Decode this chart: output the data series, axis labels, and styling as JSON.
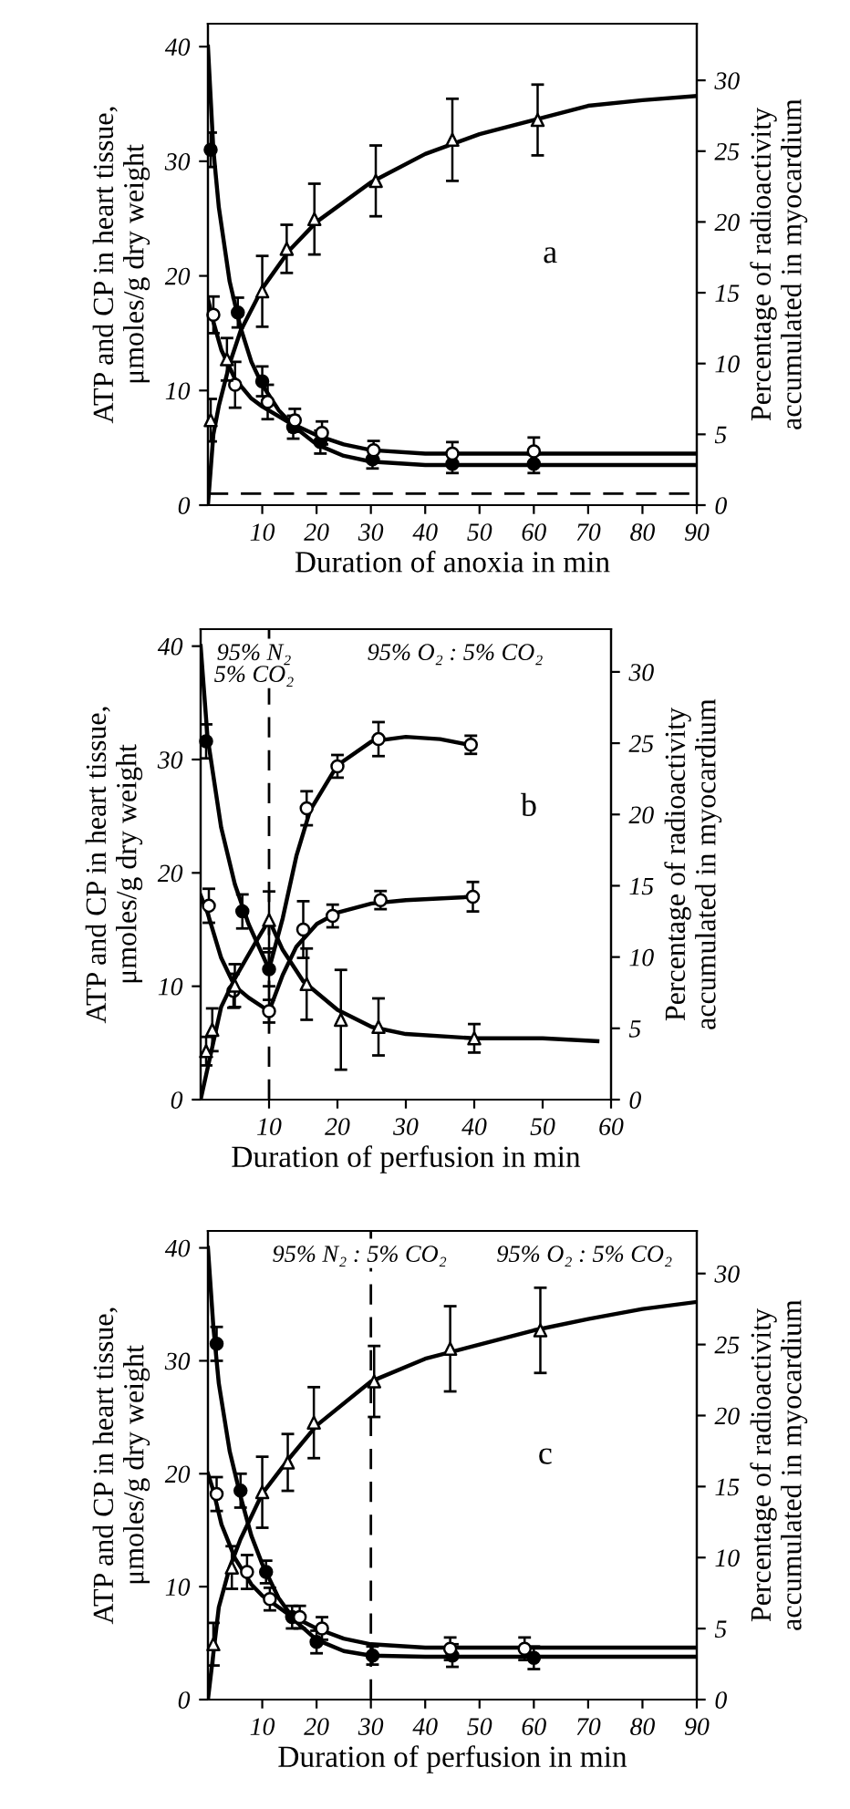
{
  "chart_data": [
    {
      "type": "line",
      "xlabel": "Duration of anoxia in min",
      "ylabel": "ATP and CP in heart tissue,\nμmoles/g dry weight",
      "y2label": "Percentage of radioactivity\naccumulated in myocardium",
      "xlim": [
        0,
        90
      ],
      "xticks": [
        10,
        20,
        30,
        40,
        50,
        60,
        70,
        80,
        90
      ],
      "ylim": [
        0,
        42
      ],
      "yticks": [
        0,
        10,
        20,
        30,
        40
      ],
      "y2lim": [
        0,
        34
      ],
      "y2ticks": [
        0,
        5,
        10,
        15,
        20,
        25,
        30
      ],
      "grid": false,
      "legend": false,
      "annotations": [
        "a"
      ],
      "ref_lines": [
        {
          "axis": "y",
          "value": 1,
          "line_style": "dashed",
          "color": "#000000"
        }
      ],
      "series": [
        {
          "type": "line",
          "color": "#000000",
          "x": [
            0,
            1,
            2,
            4,
            6,
            8,
            10,
            13,
            16,
            20,
            25,
            30,
            40,
            90
          ],
          "values": [
            40,
            31,
            26,
            19.5,
            15.5,
            12.5,
            10.5,
            8.3,
            6.8,
            5.3,
            4.3,
            3.8,
            3.5,
            3.5
          ]
        },
        {
          "type": "line",
          "color": "#000000",
          "x": [
            0,
            1,
            2.5,
            5,
            8,
            10,
            15,
            20,
            25,
            30,
            40,
            90
          ],
          "values": [
            18,
            16,
            13.5,
            11,
            9.3,
            8.6,
            7.2,
            6.1,
            5.3,
            4.8,
            4.5,
            4.5
          ]
        },
        {
          "type": "line",
          "axis": "y2",
          "color": "#000000",
          "x": [
            0,
            1,
            2,
            4,
            6,
            10,
            15,
            20,
            30,
            40,
            50,
            60,
            70,
            80,
            90
          ],
          "values": [
            0,
            5,
            7,
            10,
            12.3,
            15.3,
            18,
            20,
            22.8,
            24.8,
            26.2,
            27.2,
            28.2,
            28.6,
            28.9
          ]
        },
        {
          "type": "scatter",
          "marker": "circle",
          "color": "#000000",
          "x": [
            0.5,
            5.5,
            10,
            15.7,
            20.7,
            30.3,
            45,
            60
          ],
          "values": [
            31,
            16.8,
            10.8,
            6.8,
            5.5,
            4,
            3.6,
            3.6
          ],
          "errors": [
            1.5,
            1.3,
            1.3,
            1,
            1,
            0.8,
            0.8,
            0.8
          ]
        },
        {
          "type": "scatter",
          "marker": "circle",
          "color": "#ffffff",
          "x": [
            1,
            5,
            11,
            16,
            21,
            30.5,
            45,
            60
          ],
          "values": [
            16.6,
            10.5,
            9,
            7.4,
            6.3,
            4.8,
            4.5,
            4.7
          ],
          "errors": [
            1.6,
            2,
            1.5,
            1,
            1,
            0.8,
            1,
            1.2
          ]
        },
        {
          "type": "scatter",
          "axis": "y2",
          "marker": "triangle",
          "color": "#ffffff",
          "x": [
            0.5,
            3.5,
            10,
            14.5,
            19.6,
            30.9,
            45,
            60.7
          ],
          "values": [
            6,
            10.3,
            15.1,
            18.1,
            20.2,
            22.9,
            25.8,
            27.2
          ],
          "errors": [
            1.5,
            1.5,
            2.5,
            1.7,
            2.5,
            2.5,
            2.9,
            2.5
          ]
        }
      ]
    },
    {
      "type": "line",
      "xlabel": "Duration of perfusion in min",
      "ylabel": "ATP and CP in heart tissue,\nμmoles/g dry weight",
      "y2label": "Percentage of radioactivity\naccumulated in myocardium",
      "xlim": [
        0,
        60
      ],
      "xticks": [
        10,
        20,
        30,
        40,
        50,
        60
      ],
      "ylim": [
        0,
        41.5
      ],
      "yticks": [
        0,
        10,
        20,
        30,
        40
      ],
      "y2lim": [
        0,
        33
      ],
      "y2ticks": [
        0,
        5,
        10,
        15,
        20,
        25,
        30
      ],
      "grid": false,
      "legend": false,
      "annotations": [
        "95% N₂\n5% CO₂",
        "95% O₂ : 5% CO₂",
        "b"
      ],
      "ref_lines": [
        {
          "axis": "x",
          "value": 10,
          "line_style": "dashed",
          "color": "#000000"
        }
      ],
      "series": [
        {
          "type": "line",
          "color": "#000000",
          "x": [
            0,
            1,
            3,
            5,
            7,
            10,
            12,
            14,
            16,
            20,
            25,
            30,
            35,
            40
          ],
          "values": [
            40,
            32,
            24,
            19,
            15.5,
            11.5,
            16,
            21.5,
            25.5,
            29.5,
            31.6,
            32,
            31.8,
            31.2
          ]
        },
        {
          "type": "line",
          "color": "#000000",
          "x": [
            0,
            1,
            3,
            5,
            7,
            10,
            12,
            14,
            17,
            20,
            25,
            30,
            40
          ],
          "values": [
            18,
            16.5,
            12.5,
            10,
            9,
            7.8,
            11,
            13.5,
            15.5,
            16.5,
            17.3,
            17.6,
            17.9
          ]
        },
        {
          "type": "line",
          "axis": "y2",
          "color": "#000000",
          "x": [
            0,
            3,
            5,
            8,
            10,
            12,
            15,
            20,
            25,
            30,
            40,
            50,
            58
          ],
          "values": [
            0,
            6.5,
            8.5,
            11,
            12.6,
            10.5,
            8.3,
            6.3,
            5.1,
            4.6,
            4.3,
            4.3,
            4.1
          ]
        },
        {
          "type": "scatter",
          "marker": "circle",
          "color": "#000000",
          "x": [
            0.8,
            6.1,
            10
          ],
          "values": [
            31.6,
            16.6,
            11.5
          ],
          "errors": [
            1.5,
            1.5,
            1.5
          ]
        },
        {
          "type": "scatter",
          "marker": "circle",
          "color": "#ffffff",
          "x": [
            15.5,
            20,
            26,
            39.5
          ],
          "values": [
            25.7,
            29.4,
            31.8,
            31.3
          ],
          "errors": [
            1.5,
            1,
            1.5,
            0.8
          ]
        },
        {
          "type": "scatter",
          "marker": "circle",
          "color": "#ffffff",
          "x": [
            1.2,
            4.8,
            10,
            15,
            19.3,
            26.3,
            39.8
          ],
          "values": [
            17.1,
            9.6,
            7.8,
            15,
            16.2,
            17.6,
            17.9
          ],
          "errors": [
            1.5,
            1.5,
            1,
            2.5,
            1,
            0.8,
            1.3
          ]
        },
        {
          "type": "scatter",
          "axis": "y2",
          "marker": "triangle",
          "color": "#ffffff",
          "x": [
            0.8,
            1.7,
            5,
            10,
            15.5,
            20.5,
            26,
            40
          ],
          "values": [
            3.4,
            4.9,
            8,
            12.6,
            8.1,
            5.6,
            5.1,
            4.3
          ],
          "errors": [
            1,
            1.5,
            1.5,
            2,
            2.5,
            3.5,
            2,
            1
          ]
        }
      ]
    },
    {
      "type": "line",
      "xlabel": "Duration of perfusion in min",
      "ylabel": "ATP and CP in heart tissue,\nμmoles/g dry weight",
      "y2label": "Percentage of radioactivity\naccumulated in myocardium",
      "xlim": [
        0,
        90
      ],
      "xticks": [
        10,
        20,
        30,
        40,
        50,
        60,
        70,
        80,
        90
      ],
      "ylim": [
        0,
        41.5
      ],
      "yticks": [
        0,
        10,
        20,
        30,
        40
      ],
      "y2lim": [
        0,
        33
      ],
      "y2ticks": [
        0,
        5,
        10,
        15,
        20,
        25,
        30
      ],
      "grid": false,
      "legend": false,
      "annotations": [
        "95% N₂ : 5% CO₂",
        "95% O₂ : 5% CO₂",
        "c"
      ],
      "ref_lines": [
        {
          "axis": "x",
          "value": 30,
          "line_style": "dashed",
          "color": "#000000"
        }
      ],
      "series": [
        {
          "type": "line",
          "color": "#000000",
          "x": [
            0,
            1,
            2,
            4,
            6,
            8,
            10,
            13,
            16,
            20,
            25,
            30,
            40,
            90
          ],
          "values": [
            40,
            33,
            28,
            22,
            18,
            14.5,
            12,
            9,
            7,
            5.3,
            4.3,
            3.9,
            3.8,
            3.8
          ]
        },
        {
          "type": "line",
          "color": "#000000",
          "x": [
            0,
            1,
            2.5,
            5,
            8,
            10,
            15,
            20,
            25,
            30,
            40,
            90
          ],
          "values": [
            20,
            18.5,
            15.5,
            12.5,
            10.2,
            9.2,
            7.5,
            6.3,
            5.4,
            4.9,
            4.6,
            4.6
          ]
        },
        {
          "type": "line",
          "axis": "y2",
          "color": "#000000",
          "x": [
            0,
            2,
            4,
            6,
            10,
            15,
            20,
            30,
            40,
            50,
            60,
            70,
            80,
            90
          ],
          "values": [
            0,
            6.5,
            9.3,
            11.3,
            14.5,
            17,
            19.3,
            22.4,
            24,
            25,
            26,
            26.8,
            27.5,
            28
          ]
        },
        {
          "type": "scatter",
          "marker": "circle",
          "color": "#000000",
          "x": [
            1.6,
            6,
            10.7,
            15.5,
            20,
            30.3,
            45,
            60
          ],
          "values": [
            31.5,
            18.5,
            11.3,
            7.3,
            5.1,
            3.9,
            3.9,
            3.7
          ],
          "errors": [
            1.5,
            1.5,
            1,
            1,
            1,
            0.8,
            1,
            1
          ]
        },
        {
          "type": "scatter",
          "marker": "circle",
          "color": "#ffffff",
          "x": [
            1.6,
            7.2,
            11.4,
            16.9,
            21,
            44.6,
            58.3
          ],
          "values": [
            18.2,
            11.3,
            8.9,
            7.3,
            6.3,
            4.5,
            4.5
          ],
          "errors": [
            1.5,
            1.5,
            1,
            1,
            1,
            1,
            1
          ]
        },
        {
          "type": "scatter",
          "axis": "y2",
          "marker": "triangle",
          "color": "#ffffff",
          "x": [
            1,
            4.4,
            10,
            14.7,
            19.5,
            30.6,
            44.6,
            61.2
          ],
          "values": [
            3.9,
            9.3,
            14.6,
            16.7,
            19.5,
            22.4,
            24.7,
            26
          ],
          "errors": [
            1.5,
            1.5,
            2.5,
            2,
            2.5,
            2.5,
            3,
            3
          ]
        }
      ]
    }
  ]
}
